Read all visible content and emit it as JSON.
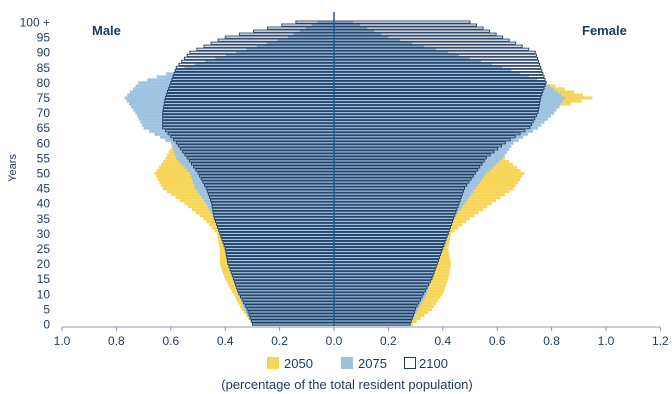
{
  "chart_data": {
    "type": "bar",
    "orientation": "horizontal-population-pyramid",
    "left_label": "Male",
    "right_label": "Female",
    "ylabel": "Years",
    "xlabel": "(percentage of the total resident population)",
    "xlim": [
      -1.0,
      1.2
    ],
    "ylim": [
      0,
      100
    ],
    "x_ticks": [
      "1.0",
      "0.8",
      "0.6",
      "0.4",
      "0.2",
      "0.0",
      "0.2",
      "0.4",
      "0.6",
      "0.8",
      "1.0",
      "1.2"
    ],
    "y_ticks": [
      "0",
      "5",
      "10",
      "15",
      "20",
      "25",
      "30",
      "35",
      "40",
      "45",
      "50",
      "55",
      "60",
      "65",
      "70",
      "75",
      "80",
      "85",
      "90",
      "95",
      "100 +"
    ],
    "series_colors": {
      "2050": "#f7d657",
      "2075": "#9ec3e0",
      "2100": "#ffffff"
    },
    "series": [
      {
        "name": "2050",
        "anchors_age": [
          0,
          5,
          10,
          15,
          20,
          25,
          30,
          35,
          40,
          45,
          50,
          55,
          60,
          65,
          70,
          75,
          80,
          85,
          90,
          95,
          100
        ],
        "male": [
          0.3,
          0.34,
          0.37,
          0.4,
          0.42,
          0.42,
          0.43,
          0.48,
          0.55,
          0.63,
          0.66,
          0.62,
          0.59,
          0.6,
          0.63,
          0.72,
          0.6,
          0.4,
          0.22,
          0.1,
          0.04
        ],
        "female": [
          0.29,
          0.36,
          0.4,
          0.42,
          0.43,
          0.42,
          0.43,
          0.5,
          0.58,
          0.66,
          0.7,
          0.63,
          0.6,
          0.65,
          0.75,
          0.95,
          0.78,
          0.56,
          0.34,
          0.16,
          0.05
        ]
      },
      {
        "name": "2075",
        "anchors_age": [
          0,
          5,
          10,
          15,
          20,
          25,
          30,
          35,
          40,
          45,
          50,
          55,
          60,
          65,
          70,
          75,
          80,
          85,
          90,
          95,
          100
        ],
        "male": [
          0.3,
          0.33,
          0.35,
          0.37,
          0.39,
          0.4,
          0.42,
          0.44,
          0.47,
          0.51,
          0.53,
          0.58,
          0.6,
          0.7,
          0.73,
          0.77,
          0.72,
          0.55,
          0.36,
          0.17,
          0.06
        ],
        "female": [
          0.28,
          0.31,
          0.34,
          0.36,
          0.38,
          0.4,
          0.42,
          0.44,
          0.48,
          0.52,
          0.56,
          0.62,
          0.66,
          0.75,
          0.81,
          0.85,
          0.78,
          0.62,
          0.42,
          0.2,
          0.07
        ]
      },
      {
        "name": "2100",
        "anchors_age": [
          0,
          5,
          10,
          15,
          20,
          25,
          30,
          35,
          40,
          45,
          50,
          55,
          60,
          65,
          70,
          75,
          80,
          85,
          90,
          95,
          100
        ],
        "male": [
          0.3,
          0.32,
          0.35,
          0.37,
          0.39,
          0.4,
          0.42,
          0.44,
          0.45,
          0.47,
          0.5,
          0.54,
          0.58,
          0.63,
          0.63,
          0.62,
          0.6,
          0.58,
          0.53,
          0.4,
          0.14
        ],
        "female": [
          0.28,
          0.3,
          0.33,
          0.36,
          0.38,
          0.4,
          0.42,
          0.44,
          0.46,
          0.48,
          0.52,
          0.56,
          0.63,
          0.72,
          0.75,
          0.76,
          0.78,
          0.76,
          0.74,
          0.62,
          0.5
        ]
      }
    ],
    "legend": [
      "2050",
      "2075",
      "2100"
    ],
    "grid": false,
    "center_line_color": "#1e5a8a"
  }
}
